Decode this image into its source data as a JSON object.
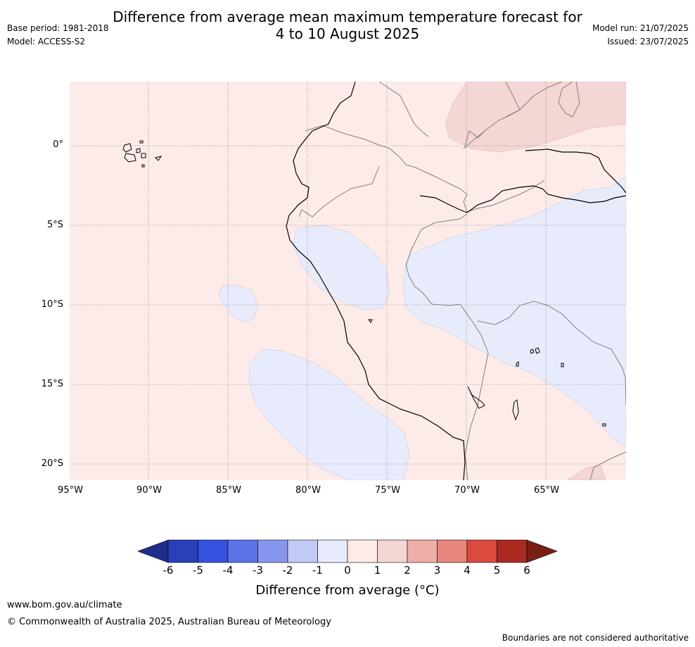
{
  "header": {
    "title_line1": "Difference from average mean maximum temperature forecast for",
    "title_line2": "4 to 10 August 2025",
    "base_period": "Base period: 1981-2018",
    "model": "Model: ACCESS-S2",
    "model_run": "Model run: 21/07/2025",
    "issued": "Issued: 23/07/2025"
  },
  "map": {
    "lat_labels": [
      "0°",
      "5°S",
      "10°S",
      "15°S",
      "20°S"
    ],
    "lon_labels": [
      "95°W",
      "90°W",
      "85°W",
      "80°W",
      "75°W",
      "70°W",
      "65°W"
    ],
    "colors": {
      "ocean_land_fill": "#fcebe9",
      "warm_anomaly": "#f4d6d4",
      "cool_anomaly": "#e8ebfb",
      "coastline": "#000000",
      "borders": "#808080",
      "gridlines": "#808080"
    }
  },
  "colorbar": {
    "ticks": [
      "-6",
      "-5",
      "-4",
      "-3",
      "-2",
      "-1",
      "0",
      "1",
      "2",
      "3",
      "4",
      "5",
      "6"
    ],
    "colors": [
      "#1f2e8a",
      "#2a40b8",
      "#3352e0",
      "#5c74e8",
      "#8797ee",
      "#c2c9f5",
      "#e8ebfb",
      "#fcebe9",
      "#f4d6d4",
      "#eeaea8",
      "#e8857c",
      "#db4a3f",
      "#aa2a22",
      "#7a1e16"
    ],
    "label": "Difference from average (°C)"
  },
  "footer": {
    "website": "www.bom.gov.au/climate",
    "copyright": "© Commonwealth of Australia 2025, Australian Bureau of Meteorology",
    "disclaimer": "Boundaries are not considered authoritative"
  }
}
